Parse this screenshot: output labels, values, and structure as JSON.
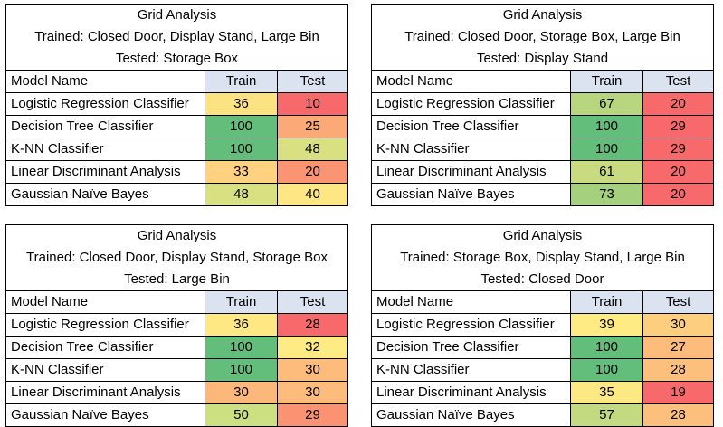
{
  "header_labels": {
    "model": "Model Name",
    "train": "Train",
    "test": "Test"
  },
  "panels": [
    {
      "title": "Grid Analysis",
      "trained": "Trained: Closed Door, Display Stand, Large Bin",
      "tested": "Tested: Storage Box",
      "rows": [
        {
          "model": "Logistic Regression Classifier",
          "train": "36",
          "test": "10",
          "train_color": "#fde283",
          "test_color": "#f8696b"
        },
        {
          "model": "Decision Tree Classifier",
          "train": "100",
          "test": "25",
          "train_color": "#63be7b",
          "test_color": "#fbaa77"
        },
        {
          "model": "K-NN Classifier",
          "train": "100",
          "test": "48",
          "train_color": "#63be7b",
          "test_color": "#d9e081"
        },
        {
          "model": "Linear Discriminant Analysis",
          "train": "33",
          "test": "20",
          "train_color": "#fed280",
          "test_color": "#fa9473"
        },
        {
          "model": "Gaussian Naïve Bayes",
          "train": "48",
          "test": "40",
          "train_color": "#d9e081",
          "test_color": "#fde683"
        }
      ]
    },
    {
      "title": "Grid Analysis",
      "trained": "Trained: Closed Door, Storage Box, Large Bin",
      "tested": "Tested: Display Stand",
      "rows": [
        {
          "model": "Logistic Regression Classifier",
          "train": "67",
          "test": "20",
          "train_color": "#b8d67f",
          "test_color": "#f8696b"
        },
        {
          "model": "Decision Tree Classifier",
          "train": "100",
          "test": "29",
          "train_color": "#63be7b",
          "test_color": "#f8696b"
        },
        {
          "model": "K-NN Classifier",
          "train": "100",
          "test": "29",
          "train_color": "#63be7b",
          "test_color": "#f8696b"
        },
        {
          "model": "Linear Discriminant Analysis",
          "train": "61",
          "test": "20",
          "train_color": "#c9db80",
          "test_color": "#f8696b"
        },
        {
          "model": "Gaussian Naïve Bayes",
          "train": "73",
          "test": "20",
          "train_color": "#a5d17e",
          "test_color": "#f8696b"
        }
      ]
    },
    {
      "title": "Grid Analysis",
      "trained": "Trained: Closed Door, Display Stand, Storage Box",
      "tested": "Tested: Large Bin",
      "rows": [
        {
          "model": "Logistic Regression Classifier",
          "train": "36",
          "test": "28",
          "train_color": "#fde883",
          "test_color": "#f8696b"
        },
        {
          "model": "Decision Tree Classifier",
          "train": "100",
          "test": "32",
          "train_color": "#63be7b",
          "test_color": "#ffeb84"
        },
        {
          "model": "K-NN Classifier",
          "train": "100",
          "test": "30",
          "train_color": "#63be7b",
          "test_color": "#fdbc7b"
        },
        {
          "model": "Linear Discriminant Analysis",
          "train": "30",
          "test": "30",
          "train_color": "#fcb77a",
          "test_color": "#fdbc7b"
        },
        {
          "model": "Gaussian Naïve Bayes",
          "train": "50",
          "test": "29",
          "train_color": "#cde081",
          "test_color": "#fb9373"
        }
      ]
    },
    {
      "title": "Grid Analysis",
      "trained": "Trained: Storage Box, Display Stand, Large Bin",
      "tested": "Tested: Closed Door",
      "rows": [
        {
          "model": "Logistic Regression Classifier",
          "train": "39",
          "test": "30",
          "train_color": "#feeb84",
          "test_color": "#fece7f"
        },
        {
          "model": "Decision Tree Classifier",
          "train": "100",
          "test": "27",
          "train_color": "#63be7b",
          "test_color": "#fdbc7b"
        },
        {
          "model": "K-NN Classifier",
          "train": "100",
          "test": "28",
          "train_color": "#63be7b",
          "test_color": "#fdc07c"
        },
        {
          "model": "Linear Discriminant Analysis",
          "train": "35",
          "test": "19",
          "train_color": "#fde983",
          "test_color": "#f8696b"
        },
        {
          "model": "Gaussian Naïve Bayes",
          "train": "57",
          "test": "28",
          "train_color": "#c3da80",
          "test_color": "#fdc07c"
        }
      ]
    }
  ]
}
